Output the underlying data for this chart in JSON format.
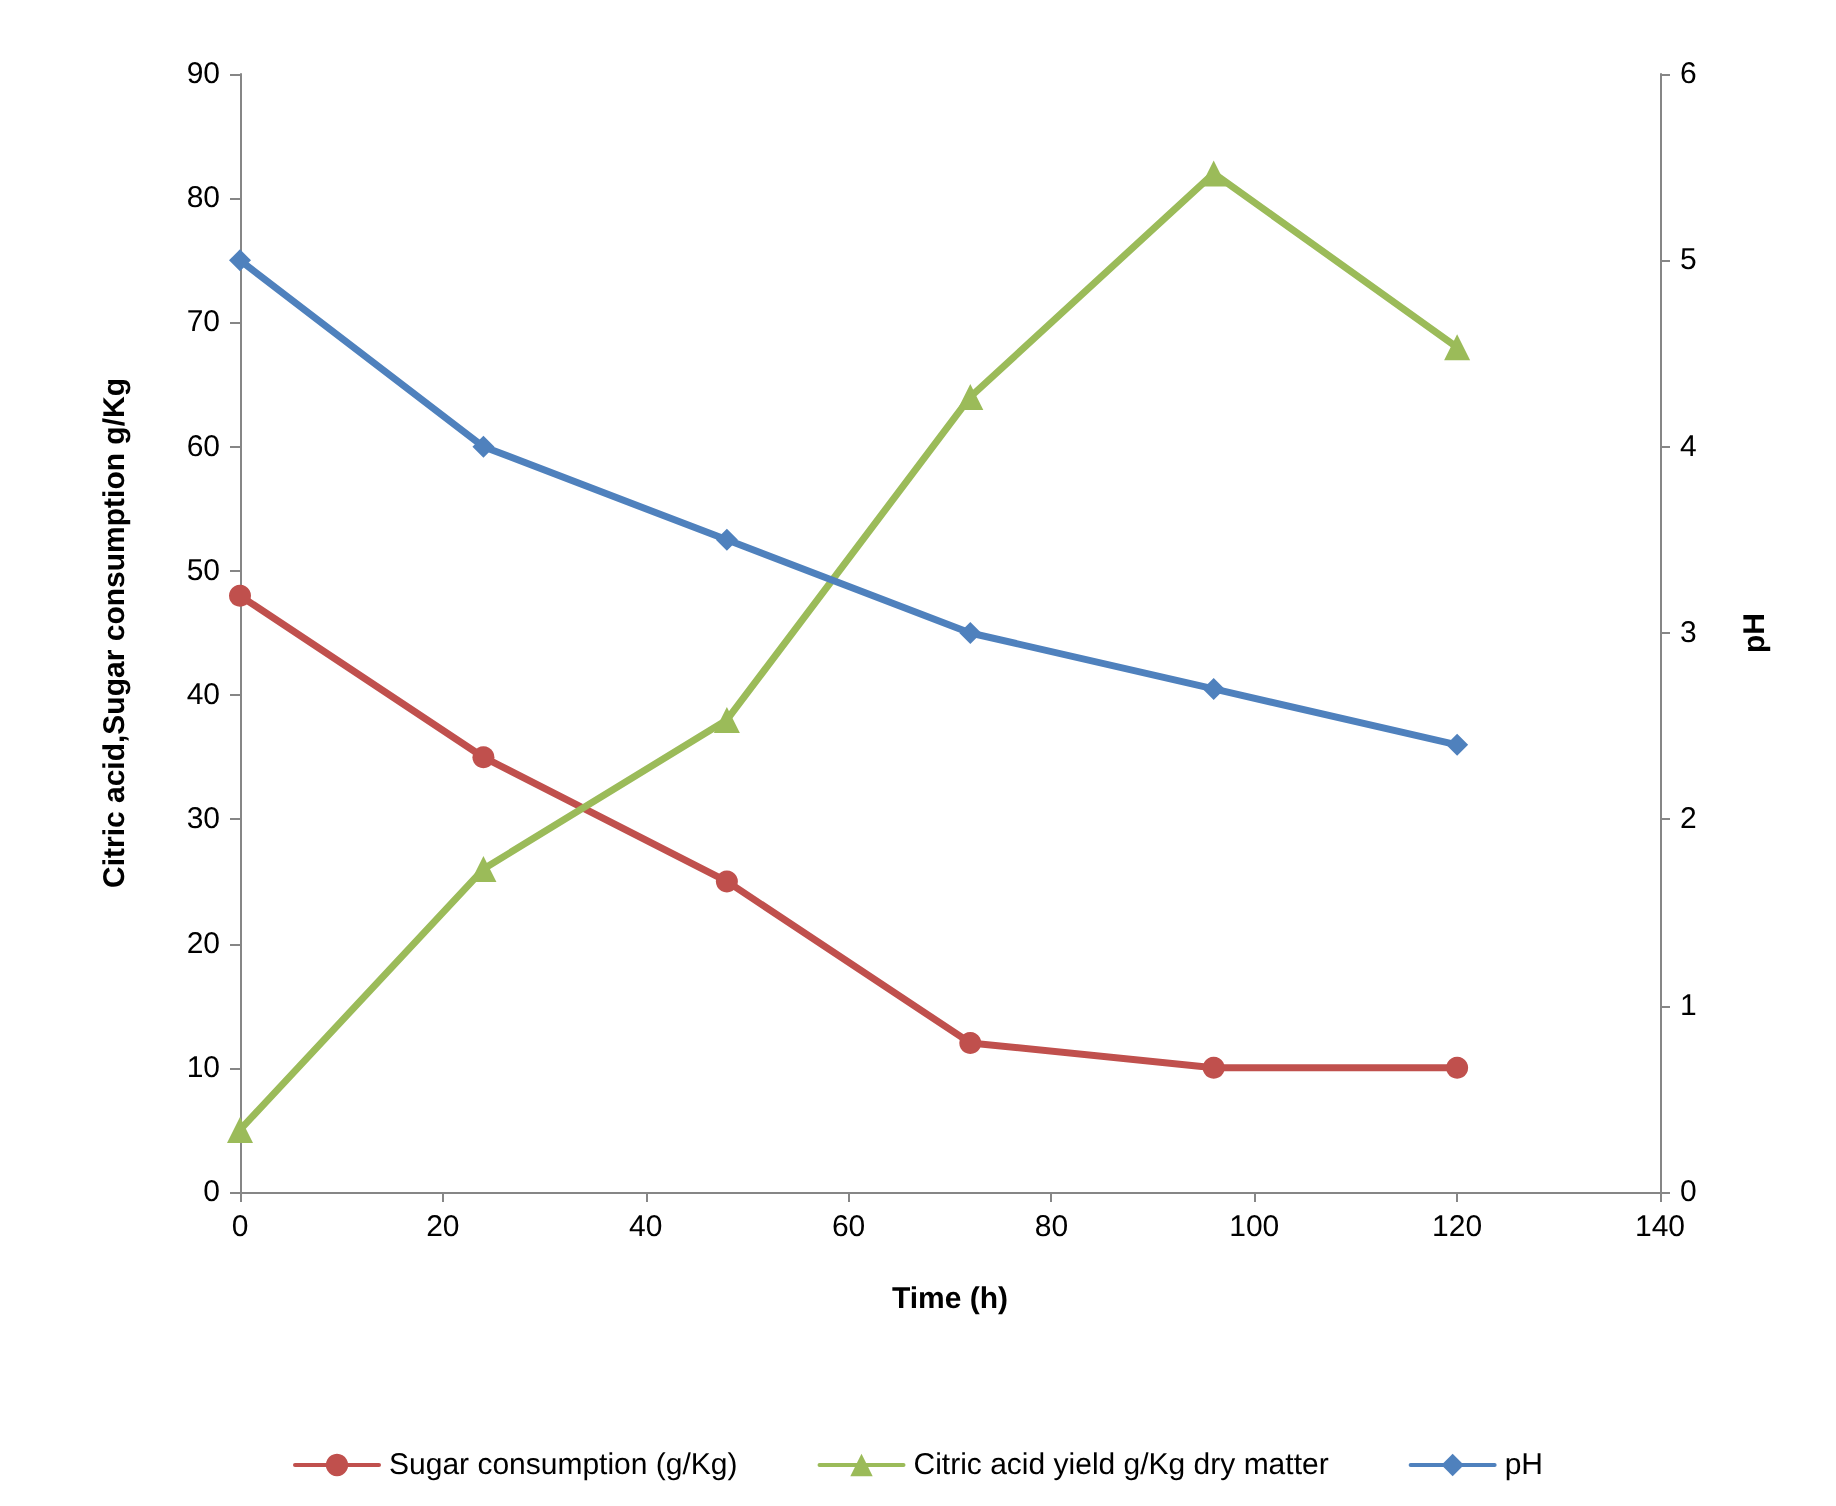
{
  "chart_data": {
    "type": "line",
    "xlabel": "Time (h)",
    "ylabel": "Citric acid,Sugar consumption g/Kg",
    "y2label": "pH",
    "x": [
      0,
      24,
      48,
      72,
      96,
      120
    ],
    "series": [
      {
        "name": "Sugar consumption (g/Kg)",
        "color": "#c0504d",
        "marker": "circle",
        "values": [
          48,
          35,
          25,
          12,
          10,
          10
        ]
      },
      {
        "name": "Citric acid yield g/Kg dry matter",
        "color": "#9bbb59",
        "marker": "triangle",
        "values": [
          5,
          26,
          38,
          64,
          82,
          68
        ]
      },
      {
        "name": "pH",
        "color": "#4f81bd",
        "marker": "diamond",
        "axis": "y2",
        "values": [
          5.0,
          4.0,
          3.5,
          3.0,
          2.7,
          2.4
        ]
      }
    ],
    "xlim": [
      0,
      140
    ],
    "xticks": [
      0,
      20,
      40,
      60,
      80,
      100,
      120,
      140
    ],
    "ylim": [
      0,
      90
    ],
    "yticks": [
      0,
      10,
      20,
      30,
      40,
      50,
      60,
      70,
      80,
      90
    ],
    "y2lim": [
      0,
      6
    ],
    "y2ticks": [
      0,
      1,
      2,
      3,
      4,
      5,
      6
    ],
    "grid": false,
    "legend": "bottom",
    "line_style": "solid"
  }
}
